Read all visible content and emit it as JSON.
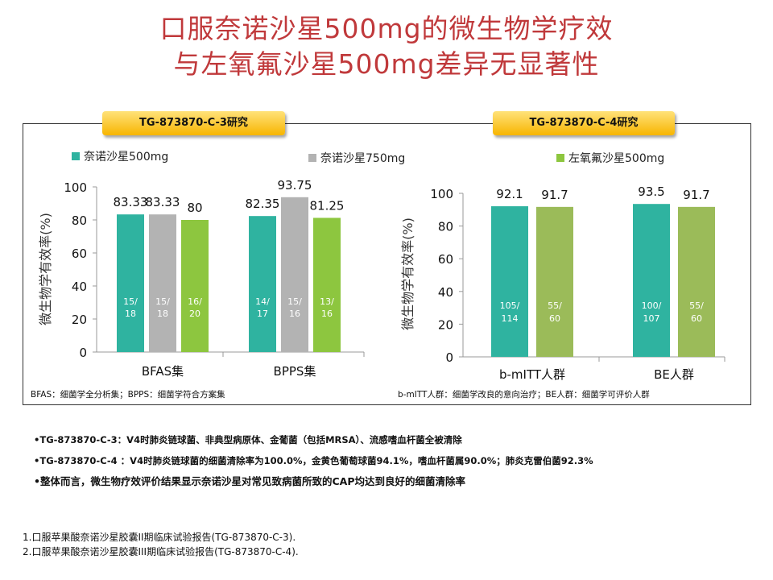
{
  "title": {
    "line1": "口服奈诺沙星500mg的微生物学疗效",
    "line2": "与左氧氟沙星500mg差异无显著性"
  },
  "study_labels": [
    "TG-873870-C-3研究",
    "TG-873870-C-4研究"
  ],
  "colors": {
    "teal": "#2fb3a0",
    "gray": "#b3b3b3",
    "green": "#8dc63f",
    "olive": "#9bbb59"
  },
  "chart_data": [
    {
      "type": "bar",
      "ylabel": "微生物学有效率(%)",
      "ylim": [
        0,
        100
      ],
      "yticks": [
        0,
        20,
        40,
        60,
        80,
        100
      ],
      "categories": [
        "BFAS集",
        "BPPS集"
      ],
      "series": [
        {
          "name": "奈诺沙星500mg",
          "color": "#2fb3a0",
          "values": [
            83.33,
            82.35
          ],
          "labels": [
            "83.33",
            "82.35"
          ],
          "fractions": [
            [
              "15/",
              "18"
            ],
            [
              "14/",
              "17"
            ]
          ]
        },
        {
          "name": "奈诺沙星750mg",
          "color": "#b3b3b3",
          "values": [
            83.33,
            93.75
          ],
          "labels": [
            "83.33",
            "93.75"
          ],
          "fractions": [
            [
              "15/",
              "18"
            ],
            [
              "15/",
              "16"
            ]
          ]
        },
        {
          "name": "左氧氟沙星500mg",
          "color": "#8dc63f",
          "values": [
            80,
            81.25
          ],
          "labels": [
            "80",
            "81.25"
          ],
          "fractions": [
            [
              "16/",
              "20"
            ],
            [
              "13/",
              "16"
            ]
          ]
        }
      ],
      "footnote": "BFAS：细菌学全分析集；BPPS：细菌学符合方案集"
    },
    {
      "type": "bar",
      "ylabel": "微生物学有效率(%)",
      "ylim": [
        0,
        100
      ],
      "yticks": [
        0,
        20,
        40,
        60,
        80,
        100
      ],
      "categories": [
        "b-mITT人群",
        "BE人群"
      ],
      "series": [
        {
          "name": "奈诺沙星500mg",
          "color": "#2fb3a0",
          "values": [
            92.1,
            93.5
          ],
          "labels": [
            "92.1",
            "93.5"
          ],
          "fractions": [
            [
              "105/",
              "114"
            ],
            [
              "100/",
              "107"
            ]
          ]
        },
        {
          "name": "左氧氟沙星500mg",
          "color": "#9bbb59",
          "values": [
            91.7,
            91.7
          ],
          "labels": [
            "91.7",
            "91.7"
          ],
          "fractions": [
            [
              "55/",
              "60"
            ],
            [
              "55/",
              "60"
            ]
          ]
        }
      ],
      "footnote": "b-mITT人群：细菌学改良的意向治疗；BE人群：细菌学可评价人群"
    }
  ],
  "bullets": [
    "•TG-873870-C-3：V4时肺炎链球菌、非典型病原体、金葡菌（包括MRSA）、流感嗜血杆菌全被清除",
    "•TG-873870-C-4 ：V4时肺炎链球菌的细菌清除率为100.0%，金黄色葡萄球菌94.1%，嗜血杆菌属90.0%；肺炎克雷伯菌92.3%",
    "•整体而言，微生物疗效评价结果显示奈诺沙星对常见致病菌所致的CAP均达到良好的细菌清除率"
  ],
  "references": [
    "1.口服苹果酸奈诺沙星胶囊II期临床试验报告(TG-873870-C-3).",
    "2.口服苹果酸奈诺沙星胶囊III期临床试验报告(TG-873870-C-4)."
  ]
}
